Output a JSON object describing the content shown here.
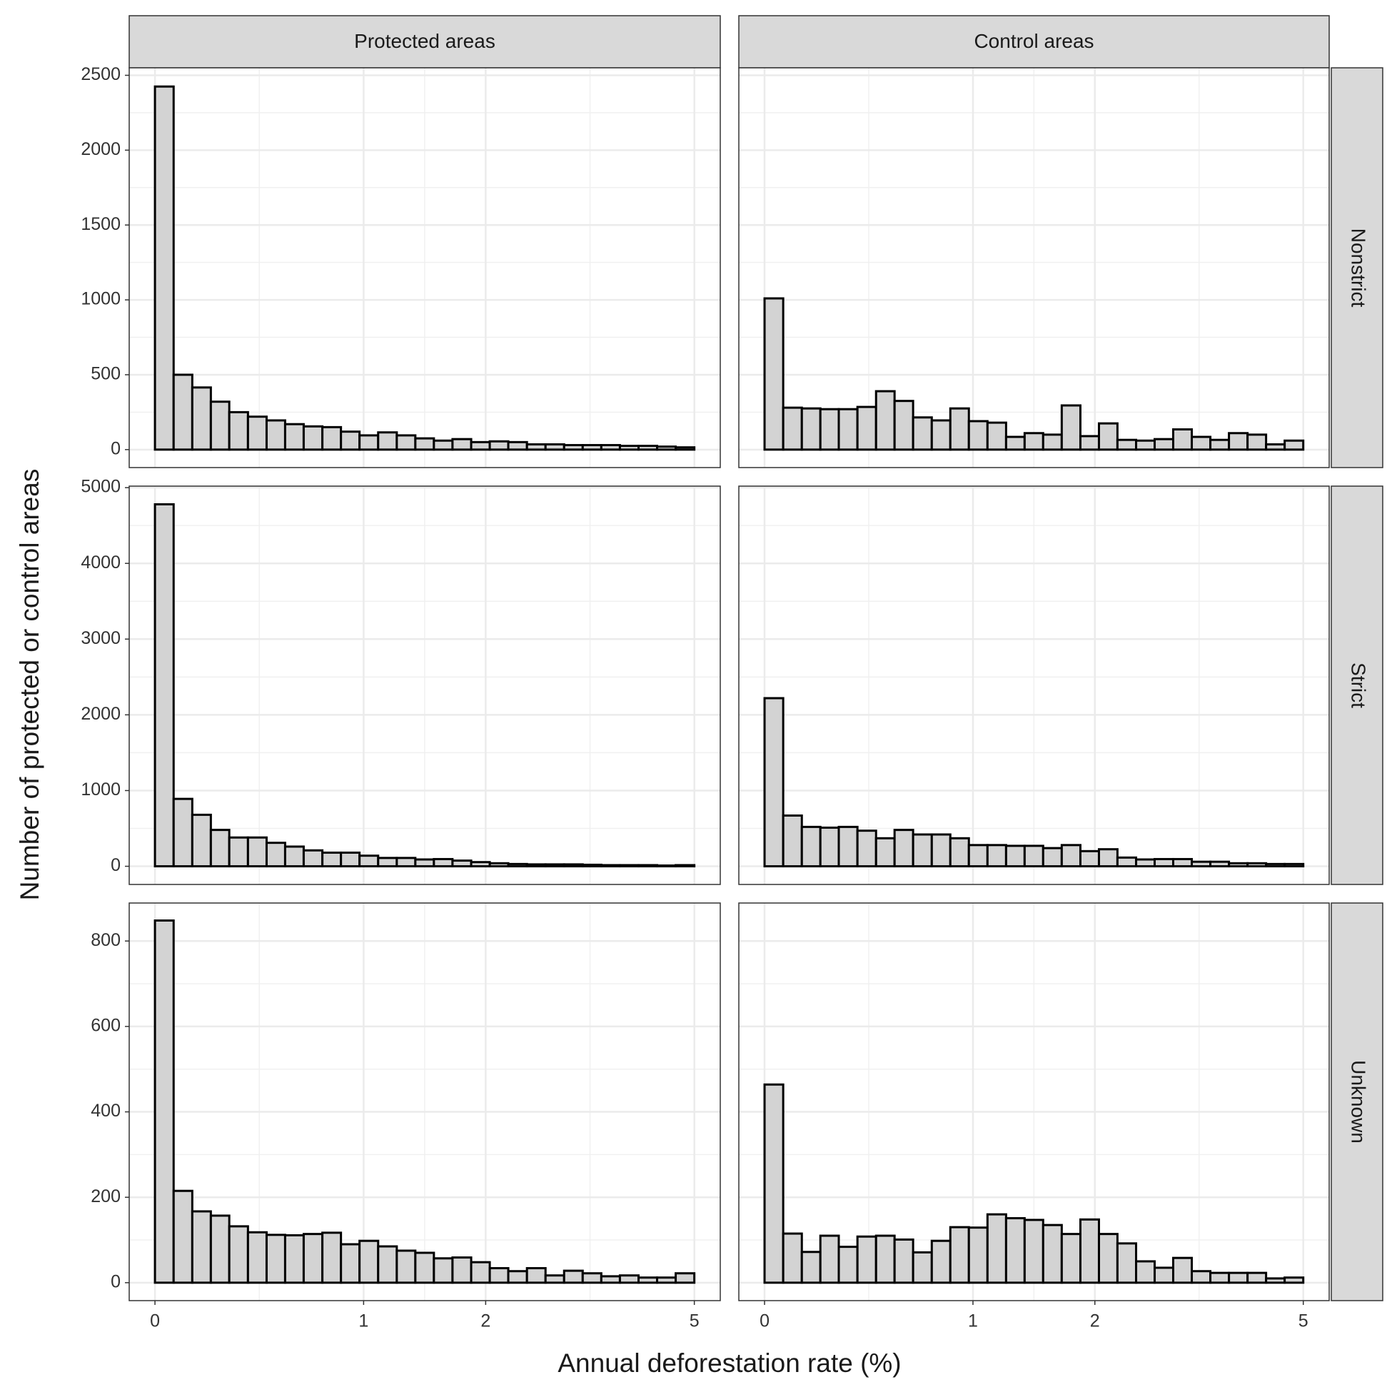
{
  "chart_data": {
    "type": "histogram",
    "x_label": "Annual deforestation rate (%)",
    "y_label": "Number of protected or control areas",
    "x_scale": "log1p",
    "xlim": [
      -0.082,
      5.54
    ],
    "xticks": [
      0,
      1,
      2,
      5
    ],
    "grid": true,
    "color": "#d3d3d3",
    "bins": [
      0,
      0.064,
      0.132,
      0.204,
      0.28,
      0.362,
      0.449,
      0.541,
      0.639,
      0.744,
      0.855,
      0.973,
      1.099,
      1.233,
      1.375,
      1.526,
      1.687,
      1.859,
      2.041,
      2.234,
      2.441,
      2.66,
      2.893,
      3.141,
      3.405,
      3.686,
      3.985,
      4.302,
      4.64,
      5.0
    ],
    "facet_cols": [
      "Protected areas",
      "Control areas"
    ],
    "facet_rows": [
      {
        "label": "Nonstrict",
        "ylim": [
          -120,
          2550
        ],
        "yticks": [
          0,
          500,
          1000,
          1500,
          2000,
          2500
        ],
        "panels": [
          {
            "values": [
              2425,
              500,
              415,
              320,
              250,
              220,
              195,
              170,
              155,
              150,
              120,
              95,
              115,
              95,
              75,
              60,
              70,
              50,
              55,
              50,
              35,
              35,
              30,
              30,
              30,
              25,
              25,
              20,
              15
            ]
          },
          {
            "values": [
              1010,
              280,
              275,
              270,
              270,
              285,
              390,
              325,
              215,
              195,
              275,
              190,
              180,
              85,
              110,
              100,
              295,
              90,
              175,
              65,
              60,
              70,
              135,
              85,
              65,
              110,
              100,
              35,
              60
            ]
          }
        ]
      },
      {
        "label": "Strict",
        "ylim": [
          -240,
          5020
        ],
        "yticks": [
          0,
          1000,
          2000,
          3000,
          4000,
          5000
        ],
        "panels": [
          {
            "values": [
              4780,
              890,
              680,
              480,
              380,
              380,
              310,
              260,
              210,
              180,
              180,
              140,
              110,
              110,
              90,
              95,
              75,
              55,
              40,
              30,
              25,
              25,
              25,
              20,
              15,
              15,
              15,
              10,
              15
            ]
          },
          {
            "values": [
              2220,
              670,
              520,
              510,
              520,
              470,
              370,
              480,
              420,
              420,
              370,
              280,
              280,
              270,
              270,
              240,
              280,
              200,
              225,
              115,
              90,
              95,
              95,
              60,
              60,
              40,
              40,
              30,
              30
            ]
          }
        ]
      },
      {
        "label": "Unknown",
        "ylim": [
          -42,
          889
        ],
        "yticks": [
          0,
          200,
          400,
          600,
          800
        ],
        "panels": [
          {
            "values": [
              848,
              215,
              167,
              157,
              132,
              118,
              112,
              111,
              114,
              117,
              90,
              98,
              85,
              75,
              70,
              57,
              59,
              48,
              34,
              27,
              34,
              17,
              28,
              22,
              15,
              17,
              12,
              12,
              22
            ]
          },
          {
            "values": [
              464,
              115,
              72,
              110,
              84,
              108,
              110,
              101,
              71,
              98,
              130,
              129,
              160,
              151,
              147,
              135,
              114,
              148,
              114,
              92,
              50,
              35,
              58,
              27,
              23,
              23,
              23,
              10,
              12
            ]
          }
        ]
      }
    ]
  }
}
